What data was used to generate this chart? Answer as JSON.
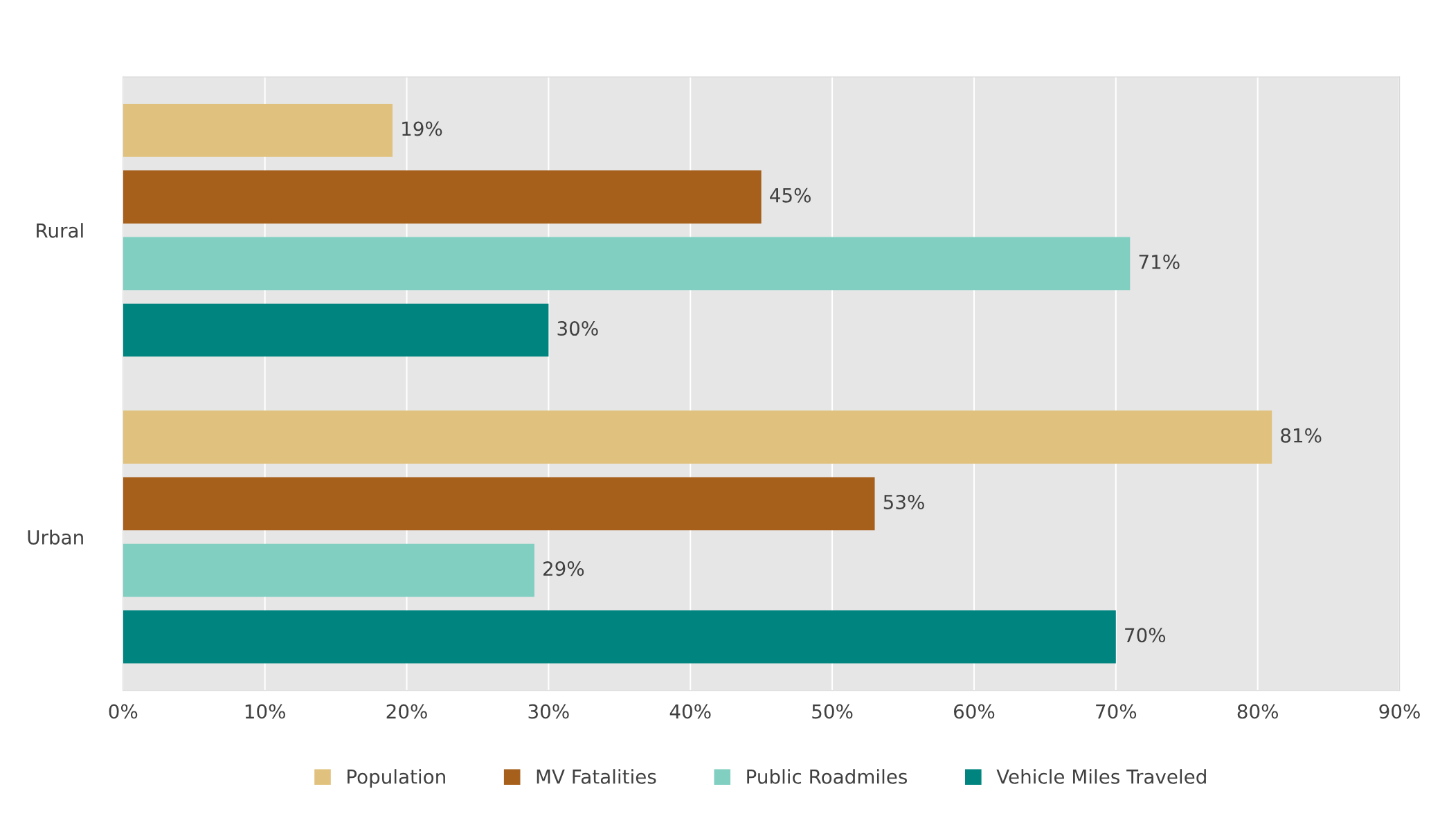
{
  "chart_data": {
    "type": "bar",
    "orientation": "horizontal",
    "categories": [
      "Rural",
      "Urban"
    ],
    "series": [
      {
        "name": "Population",
        "color": "#e0c27e",
        "values": [
          19,
          81
        ],
        "value_labels": [
          "19%",
          "81%"
        ]
      },
      {
        "name": "MV Fatalities",
        "color": "#a6601c",
        "values": [
          45,
          53
        ],
        "value_labels": [
          "45%",
          "53%"
        ]
      },
      {
        "name": "Public Roadmiles",
        "color": "#80cfc1",
        "values": [
          71,
          29
        ],
        "value_labels": [
          "71%",
          "29%"
        ]
      },
      {
        "name": "Vehicle Miles Traveled",
        "color": "#00847f",
        "values": [
          30,
          70
        ],
        "value_labels": [
          "30%",
          "70%"
        ]
      }
    ],
    "xlim": [
      0,
      90
    ],
    "xticks": [
      {
        "value": 0,
        "label": "0%"
      },
      {
        "value": 10,
        "label": "10%"
      },
      {
        "value": 20,
        "label": "20%"
      },
      {
        "value": 30,
        "label": "30%"
      },
      {
        "value": 40,
        "label": "40%"
      },
      {
        "value": 50,
        "label": "50%"
      },
      {
        "value": 60,
        "label": "60%"
      },
      {
        "value": 70,
        "label": "70%"
      },
      {
        "value": 80,
        "label": "80%"
      },
      {
        "value": 90,
        "label": "90%"
      }
    ],
    "grid": "x",
    "legend": "bottom"
  }
}
